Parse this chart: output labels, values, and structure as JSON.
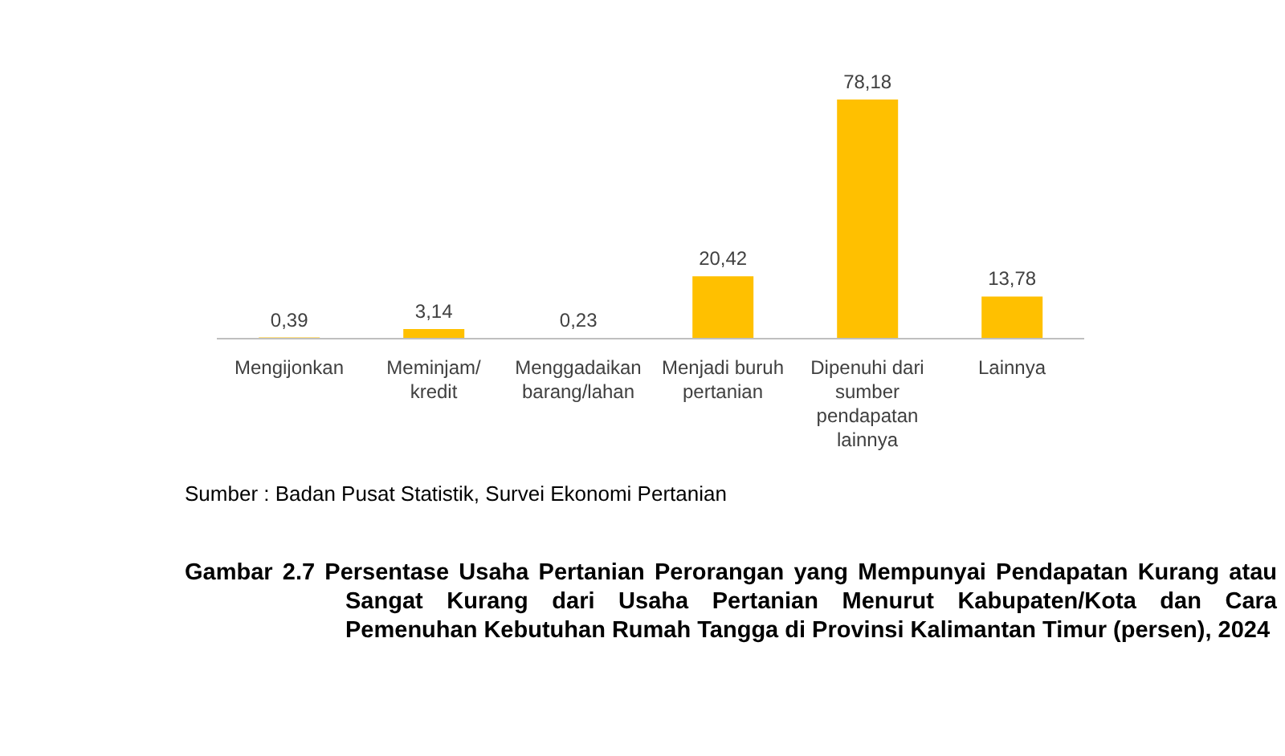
{
  "chart_data": {
    "type": "bar",
    "title": "Gambar 2.7 Persentase Usaha Pertanian Perorangan yang Mempunyai Pendapatan Kurang atau Sangat Kurang dari Usaha Pertanian Menurut Kabupaten/Kota dan Cara Pemenuhan Kebutuhan Rumah Tangga di Provinsi Kalimantan Timur (persen), 2024",
    "annotations": [
      "Sumber : Badan Pusat Statistik, Survei Ekonomi Pertanian"
    ],
    "categories": [
      "Mengijonkan",
      "Meminjam/kredit",
      "Menggadaikan barang/lahan",
      "Menjadi buruh pertanian",
      "Dipenuhi dari sumber pendapatan lainnya",
      "Lainnya"
    ],
    "values": [
      0.39,
      3.14,
      0.23,
      20.42,
      78.18,
      13.78
    ],
    "value_labels": [
      "0,39",
      "3,14",
      "0,23",
      "20,42",
      "78,18",
      "13,78"
    ],
    "color": "#ffc000",
    "legend": false,
    "grid": false
  }
}
